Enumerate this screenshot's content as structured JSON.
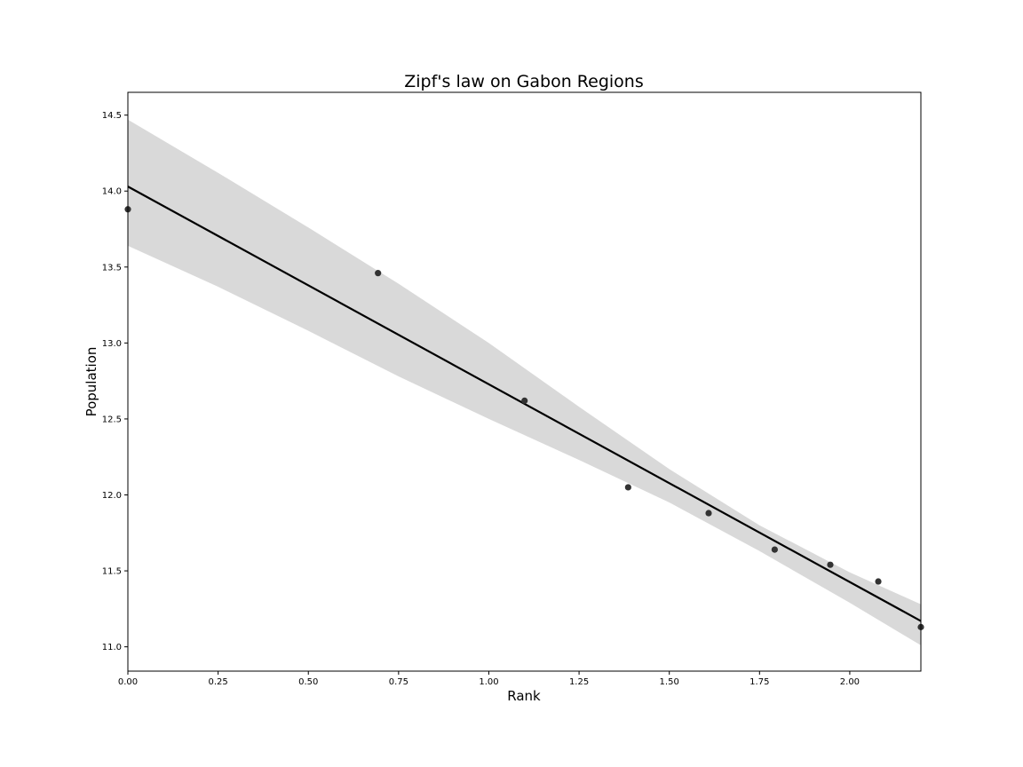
{
  "chart_data": {
    "type": "scatter",
    "title": "Zipf's law on Gabon Regions",
    "xlabel": "Rank",
    "ylabel": "Population",
    "xlim": [
      0,
      2.197
    ],
    "ylim": [
      10.84,
      14.65
    ],
    "grid": false,
    "xticks": [
      0,
      0.25,
      0.5,
      0.75,
      1.0,
      1.25,
      1.5,
      1.75,
      2.0
    ],
    "xtick_labels": [
      "0.00",
      "0.25",
      "0.50",
      "0.75",
      "1.00",
      "1.25",
      "1.50",
      "1.75",
      "2.00"
    ],
    "yticks": [
      11.0,
      11.5,
      12.0,
      12.5,
      13.0,
      13.5,
      14.0,
      14.5
    ],
    "ytick_labels": [
      "11.0",
      "11.5",
      "12.0",
      "12.5",
      "13.0",
      "13.5",
      "14.0",
      "14.5"
    ],
    "series": [
      {
        "points": [
          {
            "x": 0.0,
            "y": 13.88
          },
          {
            "x": 0.693,
            "y": 13.46
          },
          {
            "x": 1.099,
            "y": 12.62
          },
          {
            "x": 1.386,
            "y": 12.05
          },
          {
            "x": 1.609,
            "y": 11.88
          },
          {
            "x": 1.792,
            "y": 11.64
          },
          {
            "x": 1.946,
            "y": 11.54
          },
          {
            "x": 2.079,
            "y": 11.43
          },
          {
            "x": 2.197,
            "y": 11.13
          }
        ],
        "color": "#333333"
      }
    ],
    "regression": {
      "intercept": 14.03,
      "end": {
        "x": 2.197,
        "y": 11.17
      },
      "ci_upper": [
        {
          "x": 0.0,
          "y": 14.47
        },
        {
          "x": 0.25,
          "y": 14.12
        },
        {
          "x": 0.5,
          "y": 13.76
        },
        {
          "x": 0.75,
          "y": 13.39
        },
        {
          "x": 1.0,
          "y": 13.0
        },
        {
          "x": 1.25,
          "y": 12.58
        },
        {
          "x": 1.5,
          "y": 12.17
        },
        {
          "x": 1.75,
          "y": 11.8
        },
        {
          "x": 2.0,
          "y": 11.49
        },
        {
          "x": 2.197,
          "y": 11.28
        }
      ],
      "ci_lower": [
        {
          "x": 0.0,
          "y": 13.64
        },
        {
          "x": 0.25,
          "y": 13.37
        },
        {
          "x": 0.5,
          "y": 13.08
        },
        {
          "x": 0.75,
          "y": 12.78
        },
        {
          "x": 1.0,
          "y": 12.5
        },
        {
          "x": 1.25,
          "y": 12.23
        },
        {
          "x": 1.5,
          "y": 11.95
        },
        {
          "x": 1.75,
          "y": 11.63
        },
        {
          "x": 2.0,
          "y": 11.29
        },
        {
          "x": 2.197,
          "y": 11.01
        }
      ],
      "line_color": "#000000",
      "band_color": "#d9d9d9"
    }
  }
}
